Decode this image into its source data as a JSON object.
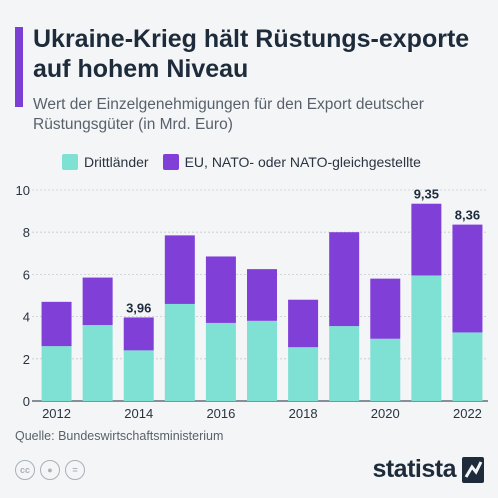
{
  "header": {
    "title": "Ukraine-Krieg hält Rüstungs-exporte auf hohem Niveau",
    "subtitle": "Wert der Einzelgenehmigungen für den Export deutscher Rüstungsgüter (in Mrd. Euro)"
  },
  "colors": {
    "accent": "#7b3fd6",
    "drittlaender": "#7fe0d4",
    "eu_nato": "#8040d8",
    "text": "#1d2b3a",
    "grid": "#c7ccd2"
  },
  "chart_data": {
    "type": "bar",
    "stacked": true,
    "x": [
      2012,
      2013,
      2014,
      2015,
      2016,
      2017,
      2018,
      2019,
      2020,
      2021,
      2022
    ],
    "x_tick_labels": [
      "2012",
      "2014",
      "2016",
      "2018",
      "2020",
      "2022"
    ],
    "series": [
      {
        "name": "Drittländer",
        "values": [
          2.6,
          3.6,
          2.4,
          4.6,
          3.7,
          3.8,
          2.55,
          3.55,
          2.95,
          5.95,
          3.25
        ]
      },
      {
        "name": "EU, NATO- oder NATO-gleichgestellte",
        "values": [
          2.1,
          2.25,
          1.56,
          3.25,
          3.15,
          2.45,
          2.25,
          4.45,
          2.85,
          3.4,
          5.11
        ]
      }
    ],
    "totals_labeled": [
      {
        "x": 2014,
        "label": "3,96"
      },
      {
        "x": 2021,
        "label": "9,35"
      },
      {
        "x": 2022,
        "label": "8,36"
      }
    ],
    "ylim": [
      0,
      10
    ],
    "y_ticks": [
      0,
      2,
      4,
      6,
      8,
      10
    ],
    "xlabel": "",
    "ylabel": "",
    "grid": true,
    "legend_position": "top-left"
  },
  "footer": {
    "source": "Quelle: Bundeswirtschaftsministerium",
    "brand": "statista",
    "license_icons": [
      "cc",
      "by",
      "nd"
    ]
  }
}
